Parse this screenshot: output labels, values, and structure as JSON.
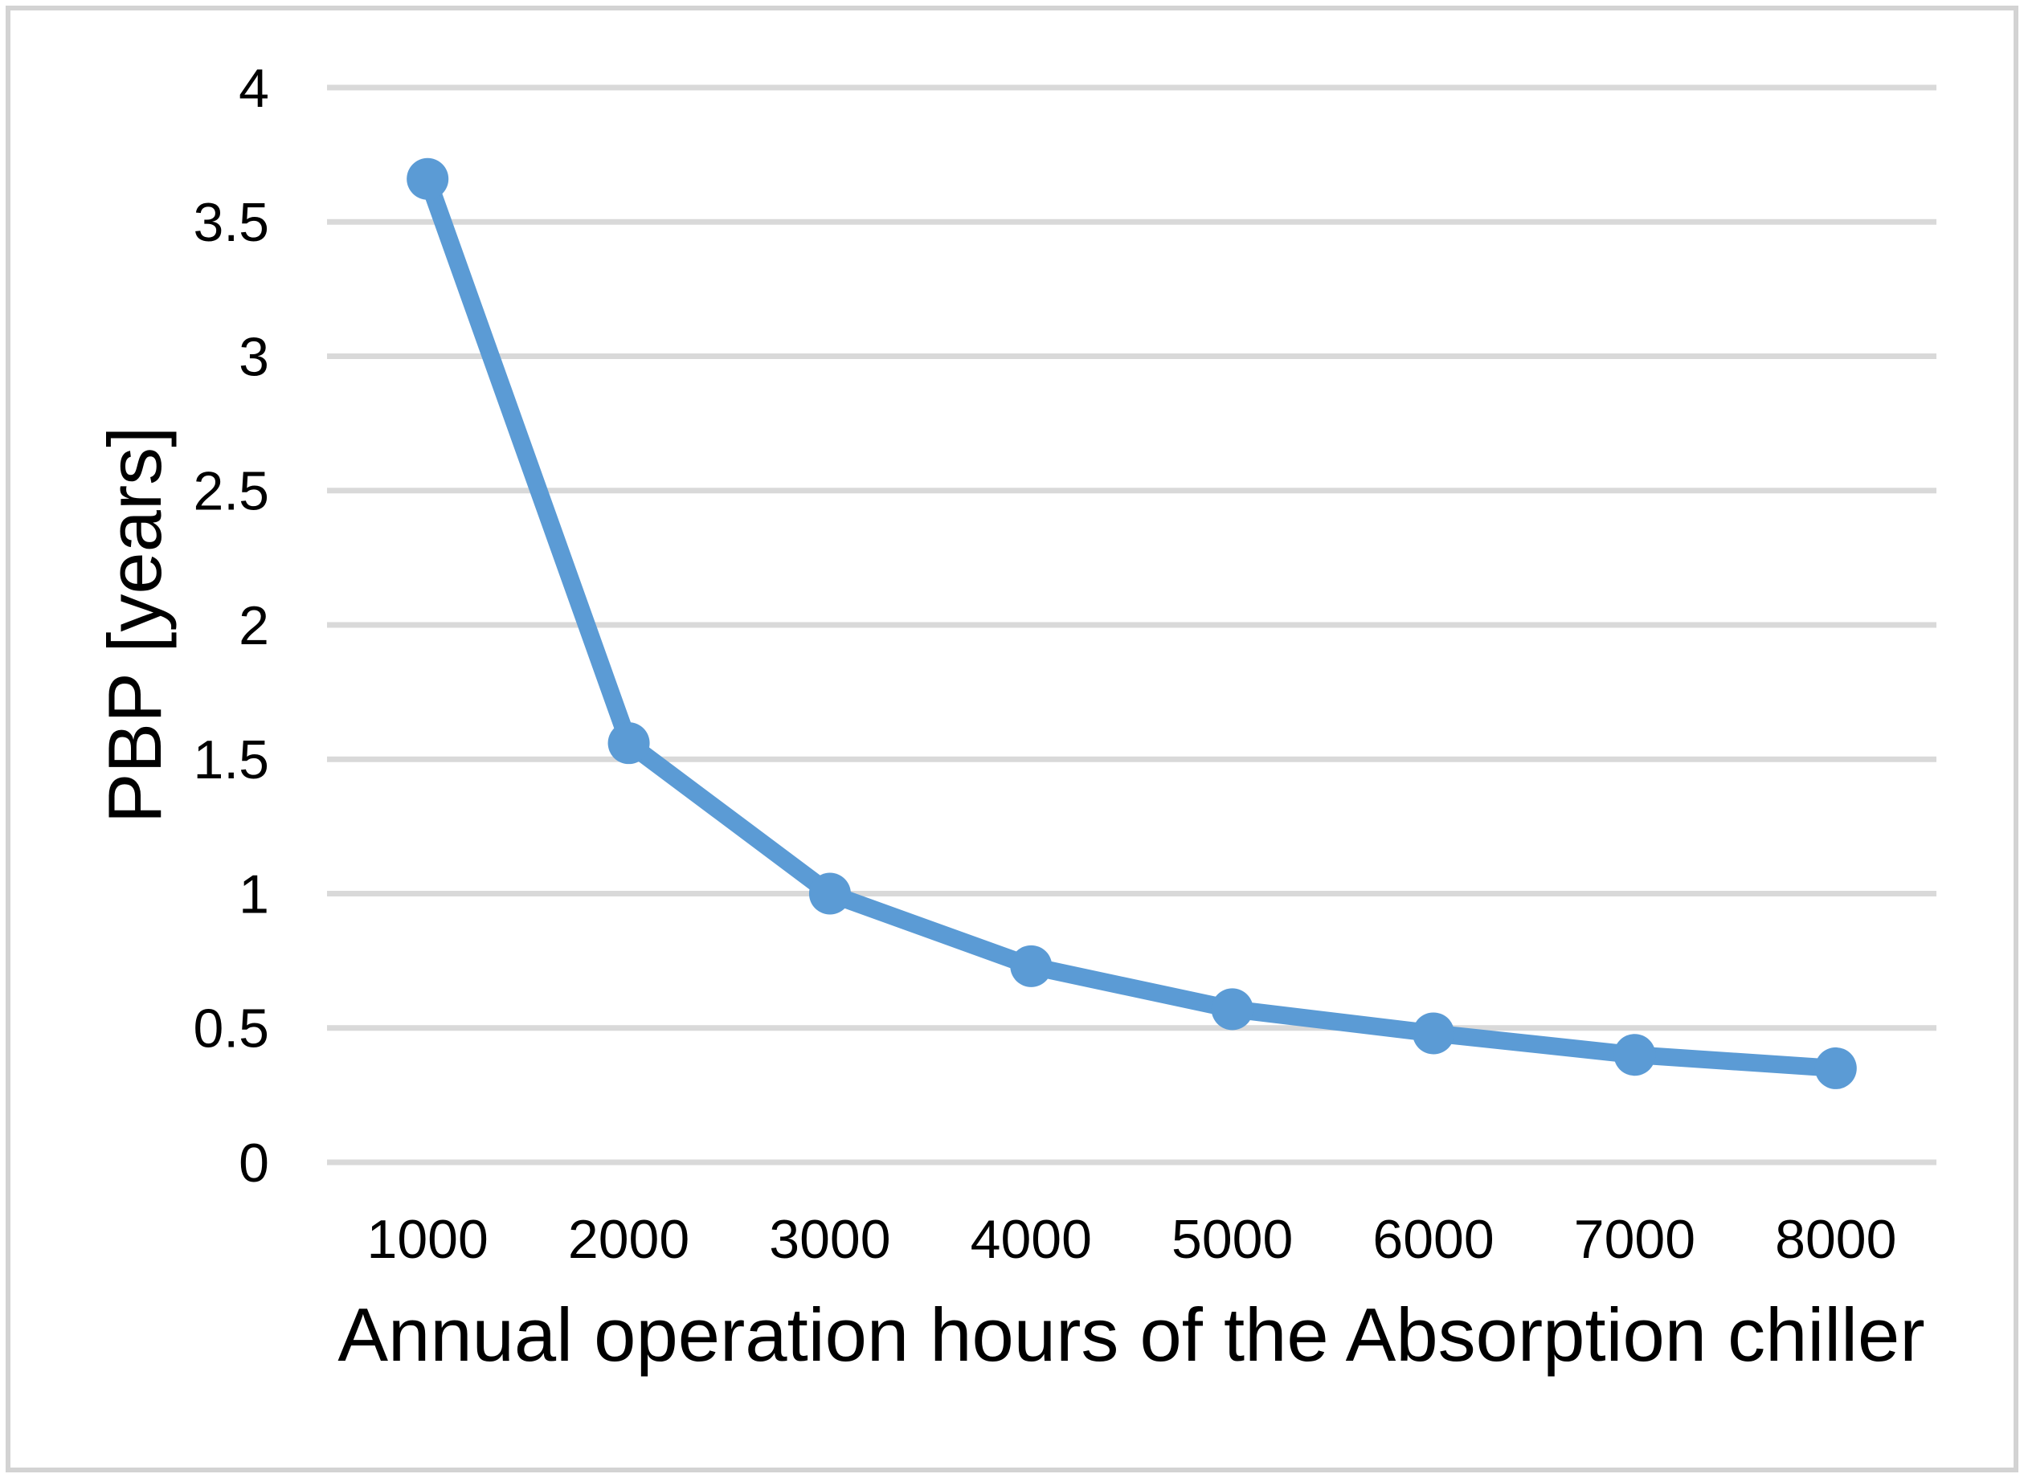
{
  "chart_data": {
    "type": "line",
    "title": "",
    "xlabel": "Annual operation hours of the Absorption chiller",
    "ylabel": "PBP [years]",
    "x": [
      1000,
      2000,
      3000,
      4000,
      5000,
      6000,
      7000,
      8000
    ],
    "x_labels": [
      "1000",
      "2000",
      "3000",
      "4000",
      "5000",
      "6000",
      "7000",
      "8000"
    ],
    "series": [
      {
        "name": "PBP",
        "values": [
          3.66,
          1.56,
          1.0,
          0.73,
          0.57,
          0.48,
          0.4,
          0.35
        ]
      }
    ],
    "ylim": [
      0,
      4
    ],
    "ytick_values": [
      4,
      3.5,
      3,
      2.5,
      2,
      1.5,
      1,
      0.5,
      0
    ],
    "ytick_labels": [
      "4",
      "3.5",
      "3",
      "2.5",
      "2",
      "1.5",
      "1",
      "0.5",
      "0"
    ],
    "grid": "horizontal",
    "legend": "none",
    "colors": {
      "line": "#5B9BD5",
      "marker": "#5B9BD5",
      "gridline": "#D9D9D9",
      "border": "#D3D3D3",
      "text": "#000000",
      "background": "#FFFFFF"
    }
  }
}
